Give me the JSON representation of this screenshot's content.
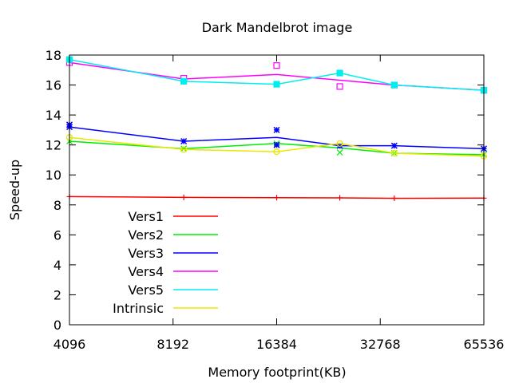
{
  "chart_data": {
    "type": "line",
    "title": "Dark Mandelbrot image",
    "xlabel": "Memory footprint(KB)",
    "ylabel": "Speed-up",
    "x_scale": "log2",
    "xlim": [
      4096,
      65536
    ],
    "ylim": [
      0,
      18
    ],
    "x_ticks": [
      4096,
      8192,
      16384,
      32768,
      65536
    ],
    "x_tick_labels": [
      "4096",
      "8192",
      "16384",
      "32768",
      "65536"
    ],
    "y_ticks": [
      0,
      2,
      4,
      6,
      8,
      10,
      12,
      14,
      16,
      18
    ],
    "y_tick_labels": [
      "0",
      "2",
      "4",
      "6",
      "8",
      "10",
      "12",
      "14",
      "16",
      "18"
    ],
    "grid": false,
    "legend_position": "bottom-left",
    "series": [
      {
        "name": "Vers1",
        "color": "#ff0000",
        "marker": "plus",
        "line": [
          [
            4096,
            8.55
          ],
          [
            8800,
            8.5
          ],
          [
            16384,
            8.48
          ],
          [
            25000,
            8.47
          ],
          [
            36000,
            8.44
          ],
          [
            65536,
            8.45
          ]
        ],
        "points": [
          [
            4096,
            8.55
          ],
          [
            8800,
            8.5
          ],
          [
            16384,
            8.48
          ],
          [
            25000,
            8.47
          ],
          [
            36000,
            8.44
          ],
          [
            65536,
            8.45
          ]
        ]
      },
      {
        "name": "Vers2",
        "color": "#00ee00",
        "marker": "cross",
        "line": [
          [
            4096,
            12.25
          ],
          [
            8800,
            11.75
          ],
          [
            16384,
            12.1
          ],
          [
            25000,
            11.8
          ],
          [
            36000,
            11.45
          ],
          [
            65536,
            11.35
          ]
        ],
        "points": [
          [
            4096,
            12.25
          ],
          [
            8800,
            11.75
          ],
          [
            16384,
            12.1
          ],
          [
            25000,
            11.5
          ],
          [
            36000,
            11.45
          ],
          [
            65536,
            11.35
          ]
        ]
      },
      {
        "name": "Vers3",
        "color": "#0000ff",
        "marker": "star",
        "line": [
          [
            4096,
            13.2
          ],
          [
            8800,
            12.25
          ],
          [
            16384,
            12.5
          ],
          [
            25000,
            11.95
          ],
          [
            36000,
            11.95
          ],
          [
            65536,
            11.75
          ]
        ],
        "points": [
          [
            4096,
            13.2
          ],
          [
            4096,
            13.35
          ],
          [
            8800,
            12.25
          ],
          [
            16384,
            12.0
          ],
          [
            16384,
            13.0
          ],
          [
            25000,
            11.95
          ],
          [
            36000,
            11.95
          ],
          [
            65536,
            11.75
          ]
        ]
      },
      {
        "name": "Vers4",
        "color": "#ff00ff",
        "marker": "square",
        "line": [
          [
            4096,
            17.5
          ],
          [
            8800,
            16.4
          ],
          [
            16384,
            16.7
          ],
          [
            36000,
            16.0
          ],
          [
            65536,
            15.65
          ]
        ],
        "points": [
          [
            4096,
            17.5
          ],
          [
            8800,
            16.45
          ],
          [
            16384,
            17.3
          ],
          [
            25000,
            15.9
          ],
          [
            36000,
            16.0
          ],
          [
            65536,
            15.65
          ]
        ]
      },
      {
        "name": "Vers5",
        "color": "#00eeee",
        "marker": "filled-square",
        "line": [
          [
            4096,
            17.7
          ],
          [
            8800,
            16.25
          ],
          [
            16384,
            16.05
          ],
          [
            25000,
            16.8
          ],
          [
            36000,
            16.0
          ],
          [
            65536,
            15.65
          ]
        ],
        "points": [
          [
            4096,
            17.7
          ],
          [
            8800,
            16.25
          ],
          [
            16384,
            16.05
          ],
          [
            25000,
            16.8
          ],
          [
            36000,
            16.0
          ],
          [
            65536,
            15.65
          ]
        ]
      },
      {
        "name": "Intrinsic",
        "color": "#e8e800",
        "marker": "circle",
        "line": [
          [
            4096,
            12.5
          ],
          [
            8800,
            11.7
          ],
          [
            16384,
            11.55
          ],
          [
            25000,
            12.1
          ],
          [
            36000,
            11.45
          ],
          [
            65536,
            11.25
          ]
        ],
        "points": [
          [
            4096,
            12.5
          ],
          [
            8800,
            11.7
          ],
          [
            16384,
            11.55
          ],
          [
            25000,
            12.1
          ],
          [
            36000,
            11.45
          ],
          [
            65536,
            11.25
          ]
        ]
      }
    ]
  }
}
